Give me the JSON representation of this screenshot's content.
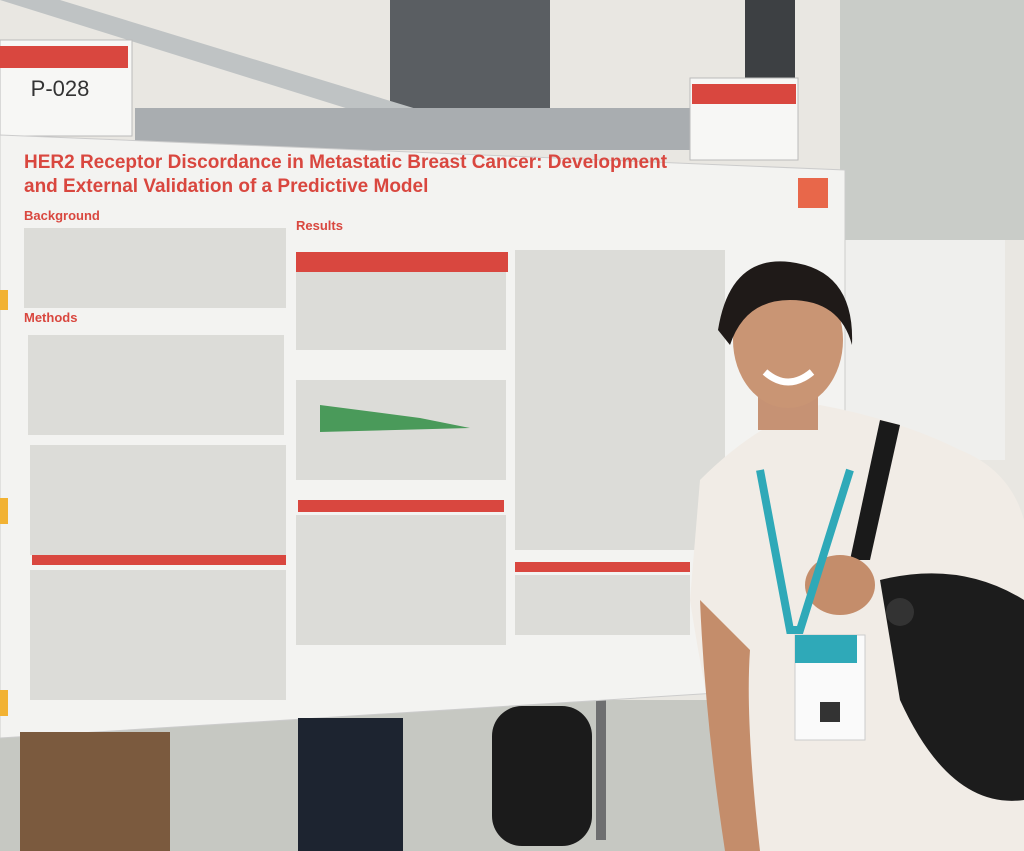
{
  "sign": {
    "label": "P-028"
  },
  "poster": {
    "title": [
      "HER2 Receptor Discordance in Metastatic Breast Cancer: Development",
      "and External Validation of a Predictive Model"
    ],
    "sections": [
      "Background",
      "Methods",
      "Results"
    ]
  }
}
